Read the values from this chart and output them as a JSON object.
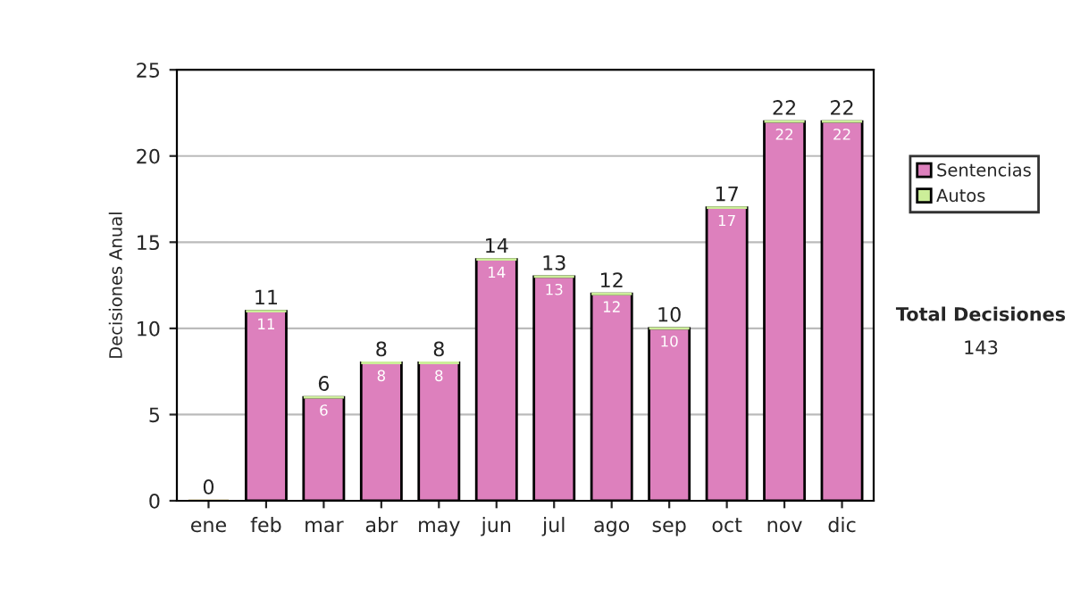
{
  "chart_data": {
    "type": "bar",
    "ylabel": "Decisiones Anual",
    "categories": [
      "ene",
      "feb",
      "mar",
      "abr",
      "may",
      "jun",
      "jul",
      "ago",
      "sep",
      "oct",
      "nov",
      "dic"
    ],
    "stacked": true,
    "series": [
      {
        "name": "Sentencias",
        "color": "#dd80bd",
        "values": [
          0,
          11,
          6,
          8,
          8,
          14,
          13,
          12,
          10,
          17,
          22,
          22
        ],
        "value_labels": [
          null,
          "11",
          "6",
          "8",
          "8",
          "14",
          "13",
          "12",
          "10",
          "17",
          "22",
          "22"
        ]
      },
      {
        "name": "Autos",
        "color": "#ccee99",
        "values": [
          0,
          0,
          0,
          0,
          0,
          0,
          0,
          0,
          0,
          0,
          0,
          0
        ]
      }
    ],
    "totals": [
      "0",
      "11",
      "6",
      "8",
      "8",
      "14",
      "13",
      "12",
      "10",
      "17",
      "22",
      "22"
    ],
    "ylim": [
      0,
      25
    ],
    "yticks": [
      0,
      5,
      10,
      15,
      20,
      25
    ],
    "grid": "y",
    "legend": "right",
    "annotations": [
      "Total Decisiones",
      "143"
    ]
  }
}
